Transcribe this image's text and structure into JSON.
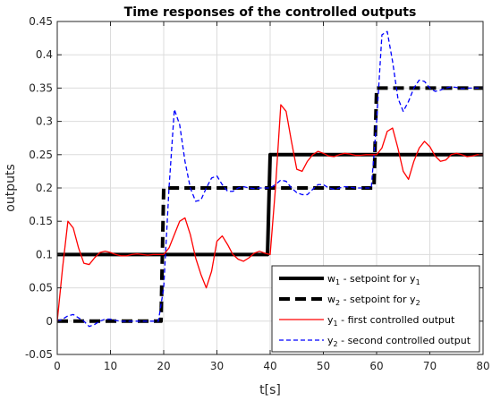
{
  "chart_data": {
    "type": "line",
    "title": "Time responses of the controlled outputs",
    "xlabel": "t[s]",
    "ylabel": "outputs",
    "xlim": [
      0,
      80
    ],
    "ylim": [
      -0.05,
      0.45
    ],
    "xticks": [
      0,
      10,
      20,
      30,
      40,
      50,
      60,
      70,
      80
    ],
    "yticks": [
      -0.05,
      0,
      0.05,
      0.1,
      0.15,
      0.2,
      0.25,
      0.3,
      0.35,
      0.4,
      0.45
    ],
    "xtick_labels": [
      "0",
      "10",
      "20",
      "30",
      "40",
      "50",
      "60",
      "70",
      "80"
    ],
    "ytick_labels": [
      "-0.05",
      "0",
      "0.05",
      "0.1",
      "0.15",
      "0.2",
      "0.25",
      "0.3",
      "0.35",
      "0.4",
      "0.45"
    ],
    "grid": true,
    "legend_position": "bottom-right",
    "series": [
      {
        "legend_main": "w",
        "legend_sub": "1",
        "legend_rest": " - setpoint for y",
        "legend_rest_sub": "1",
        "color": "#000000",
        "style": "solid-thick",
        "x": [
          0,
          39.5,
          40,
          80
        ],
        "y": [
          0.1,
          0.1,
          0.25,
          0.25
        ]
      },
      {
        "legend_main": "w",
        "legend_sub": "2",
        "legend_rest": " - setpoint for y",
        "legend_rest_sub": "2",
        "color": "#000000",
        "style": "dashed-thick",
        "x": [
          0,
          19.5,
          20,
          59.5,
          60,
          80
        ],
        "y": [
          0,
          0,
          0.2,
          0.2,
          0.35,
          0.35
        ]
      },
      {
        "legend_main": "y",
        "legend_sub": "1",
        "legend_rest": " - first controlled output",
        "legend_rest_sub": "",
        "color": "#ff0000",
        "style": "solid",
        "x": [
          0,
          1,
          2,
          3,
          4,
          5,
          6,
          7,
          8,
          9,
          10,
          11,
          12,
          13,
          14,
          15,
          16,
          17,
          18,
          19,
          20,
          21,
          22,
          23,
          24,
          25,
          26,
          27,
          28,
          29,
          30,
          31,
          32,
          33,
          34,
          35,
          36,
          37,
          38,
          39,
          40,
          41,
          42,
          43,
          44,
          45,
          46,
          47,
          48,
          49,
          50,
          51,
          52,
          53,
          54,
          55,
          56,
          57,
          58,
          59,
          60,
          61,
          62,
          63,
          64,
          65,
          66,
          67,
          68,
          69,
          70,
          71,
          72,
          73,
          74,
          75,
          76,
          77,
          78,
          79,
          80
        ],
        "y": [
          0,
          0.08,
          0.15,
          0.14,
          0.11,
          0.087,
          0.085,
          0.095,
          0.103,
          0.105,
          0.103,
          0.1,
          0.098,
          0.098,
          0.1,
          0.101,
          0.1,
          0.099,
          0.1,
          0.1,
          0.1,
          0.11,
          0.13,
          0.15,
          0.155,
          0.13,
          0.095,
          0.07,
          0.05,
          0.075,
          0.12,
          0.128,
          0.115,
          0.1,
          0.093,
          0.09,
          0.095,
          0.102,
          0.105,
          0.102,
          0.1,
          0.2,
          0.325,
          0.315,
          0.27,
          0.228,
          0.225,
          0.24,
          0.25,
          0.255,
          0.252,
          0.248,
          0.247,
          0.25,
          0.252,
          0.251,
          0.249,
          0.249,
          0.25,
          0.25,
          0.25,
          0.26,
          0.285,
          0.29,
          0.26,
          0.225,
          0.213,
          0.24,
          0.26,
          0.27,
          0.262,
          0.248,
          0.24,
          0.242,
          0.25,
          0.252,
          0.25,
          0.247,
          0.248,
          0.25,
          0.25
        ]
      },
      {
        "legend_main": "y",
        "legend_sub": "2",
        "legend_rest": " - second controlled output",
        "legend_rest_sub": "",
        "color": "#0000ff",
        "style": "dashed",
        "x": [
          0,
          1,
          2,
          3,
          4,
          5,
          6,
          7,
          8,
          9,
          10,
          11,
          12,
          13,
          14,
          15,
          16,
          17,
          18,
          19,
          20,
          21,
          22,
          23,
          24,
          25,
          26,
          27,
          28,
          29,
          30,
          31,
          32,
          33,
          34,
          35,
          36,
          37,
          38,
          39,
          40,
          41,
          42,
          43,
          44,
          45,
          46,
          47,
          48,
          49,
          50,
          51,
          52,
          53,
          54,
          55,
          56,
          57,
          58,
          59,
          60,
          61,
          62,
          63,
          64,
          65,
          66,
          67,
          68,
          69,
          70,
          71,
          72,
          73,
          74,
          75,
          76,
          77,
          78,
          79,
          80
        ],
        "y": [
          0,
          0.003,
          0.008,
          0.01,
          0.005,
          0,
          -0.008,
          -0.005,
          0,
          0.003,
          0.003,
          0.001,
          0,
          0,
          0,
          0,
          0,
          0,
          0,
          0,
          0.05,
          0.2,
          0.318,
          0.295,
          0.24,
          0.2,
          0.18,
          0.182,
          0.2,
          0.215,
          0.218,
          0.205,
          0.195,
          0.195,
          0.2,
          0.202,
          0.2,
          0.199,
          0.2,
          0.2,
          0.2,
          0.205,
          0.212,
          0.21,
          0.2,
          0.193,
          0.19,
          0.19,
          0.198,
          0.205,
          0.205,
          0.2,
          0.198,
          0.2,
          0.202,
          0.201,
          0.2,
          0.2,
          0.2,
          0.2,
          0.3,
          0.43,
          0.435,
          0.39,
          0.335,
          0.315,
          0.33,
          0.35,
          0.362,
          0.36,
          0.35,
          0.345,
          0.347,
          0.35,
          0.352,
          0.351,
          0.349,
          0.35,
          0.35,
          0.35,
          0.35
        ]
      }
    ]
  }
}
